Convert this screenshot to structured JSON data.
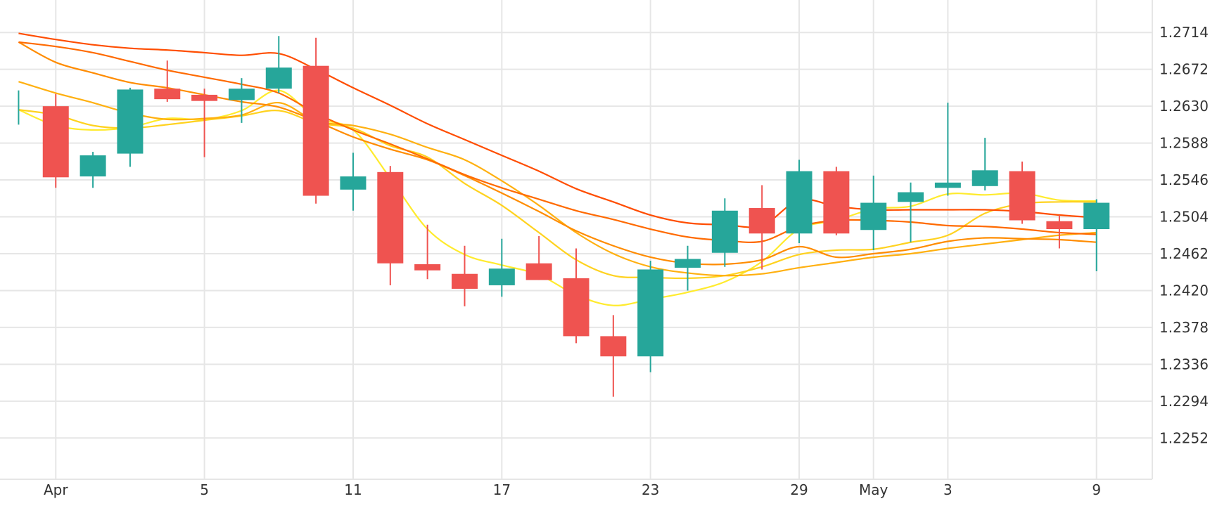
{
  "chart_data": {
    "type": "candlestick",
    "y_ticks": [
      "1.2714",
      "1.2672",
      "1.2630",
      "1.2588",
      "1.2546",
      "1.2504",
      "1.2462",
      "1.2420",
      "1.2378",
      "1.2336",
      "1.2294",
      "1.2252"
    ],
    "x_ticks": [
      {
        "label": "Apr",
        "day_index": 1
      },
      {
        "label": "5",
        "day_index": 5
      },
      {
        "label": "11",
        "day_index": 9
      },
      {
        "label": "17",
        "day_index": 13
      },
      {
        "label": "23",
        "day_index": 17
      },
      {
        "label": "29",
        "day_index": 21
      },
      {
        "label": "May",
        "day_index": 23
      },
      {
        "label": "3",
        "day_index": 25
      },
      {
        "label": "9",
        "day_index": 29
      }
    ],
    "ylim": [
      1.2205,
      1.2751
    ],
    "xlim": [
      -0.5,
      30.5
    ],
    "grid": true,
    "candles": [
      {
        "i": 0,
        "open": 1.2616,
        "high": 1.2648,
        "low": 1.2609,
        "close": 1.2626
      },
      {
        "i": 1,
        "open": 1.263,
        "high": 1.2644,
        "low": 1.2537,
        "close": 1.2549
      },
      {
        "i": 2,
        "open": 1.255,
        "high": 1.2578,
        "low": 1.2537,
        "close": 1.2574
      },
      {
        "i": 3,
        "open": 1.2576,
        "high": 1.2651,
        "low": 1.2561,
        "close": 1.2649
      },
      {
        "i": 4,
        "open": 1.265,
        "high": 1.2682,
        "low": 1.2635,
        "close": 1.2638
      },
      {
        "i": 5,
        "open": 1.2643,
        "high": 1.265,
        "low": 1.2572,
        "close": 1.2636
      },
      {
        "i": 6,
        "open": 1.2637,
        "high": 1.2662,
        "low": 1.2611,
        "close": 1.265
      },
      {
        "i": 7,
        "open": 1.265,
        "high": 1.271,
        "low": 1.2645,
        "close": 1.2674
      },
      {
        "i": 8,
        "open": 1.2676,
        "high": 1.2708,
        "low": 1.2519,
        "close": 1.2528
      },
      {
        "i": 9,
        "open": 1.2535,
        "high": 1.2577,
        "low": 1.2511,
        "close": 1.255
      },
      {
        "i": 10,
        "open": 1.2555,
        "high": 1.2562,
        "low": 1.2426,
        "close": 1.2451
      },
      {
        "i": 11,
        "open": 1.245,
        "high": 1.2495,
        "low": 1.2433,
        "close": 1.2443
      },
      {
        "i": 12,
        "open": 1.2439,
        "high": 1.2471,
        "low": 1.2402,
        "close": 1.2422
      },
      {
        "i": 13,
        "open": 1.2426,
        "high": 1.2479,
        "low": 1.2413,
        "close": 1.2445
      },
      {
        "i": 14,
        "open": 1.2451,
        "high": 1.2482,
        "low": 1.2432,
        "close": 1.2432
      },
      {
        "i": 15,
        "open": 1.2434,
        "high": 1.2468,
        "low": 1.236,
        "close": 1.2368
      },
      {
        "i": 16,
        "open": 1.2368,
        "high": 1.2392,
        "low": 1.2299,
        "close": 1.2345
      },
      {
        "i": 17,
        "open": 1.2345,
        "high": 1.2454,
        "low": 1.2327,
        "close": 1.2444
      },
      {
        "i": 18,
        "open": 1.2446,
        "high": 1.2471,
        "low": 1.242,
        "close": 1.2456
      },
      {
        "i": 19,
        "open": 1.2463,
        "high": 1.2525,
        "low": 1.2447,
        "close": 1.2511
      },
      {
        "i": 20,
        "open": 1.2514,
        "high": 1.254,
        "low": 1.2444,
        "close": 1.2485
      },
      {
        "i": 21,
        "open": 1.2485,
        "high": 1.2569,
        "low": 1.2474,
        "close": 1.2556
      },
      {
        "i": 22,
        "open": 1.2556,
        "high": 1.2561,
        "low": 1.2483,
        "close": 1.2485
      },
      {
        "i": 23,
        "open": 1.2489,
        "high": 1.2551,
        "low": 1.2466,
        "close": 1.252
      },
      {
        "i": 24,
        "open": 1.2521,
        "high": 1.2543,
        "low": 1.2475,
        "close": 1.2532
      },
      {
        "i": 25,
        "open": 1.2537,
        "high": 1.2634,
        "low": 1.2528,
        "close": 1.2543
      },
      {
        "i": 26,
        "open": 1.2539,
        "high": 1.2594,
        "low": 1.2534,
        "close": 1.2557
      },
      {
        "i": 27,
        "open": 1.2556,
        "high": 1.2567,
        "low": 1.2496,
        "close": 1.25
      },
      {
        "i": 28,
        "open": 1.2499,
        "high": 1.2506,
        "low": 1.2468,
        "close": 1.249
      },
      {
        "i": 29,
        "open": 1.249,
        "high": 1.2524,
        "low": 1.2442,
        "close": 1.252
      }
    ],
    "series": [
      {
        "color": "#ffeb2e",
        "values": [
          1.2626,
          1.2608,
          1.2603,
          1.2606,
          1.2616,
          1.2615,
          1.2625,
          1.2648,
          1.2617,
          1.2603,
          1.2548,
          1.249,
          1.2461,
          1.2449,
          1.2438,
          1.2415,
          1.2403,
          1.241,
          1.2418,
          1.243,
          1.2453,
          1.249,
          1.25,
          1.2513,
          1.2516,
          1.253,
          1.2529,
          1.2531,
          1.2523,
          1.2522
        ]
      },
      {
        "color": "#ffd21f",
        "values": [
          1.2626,
          1.262,
          1.2608,
          1.2605,
          1.2609,
          1.2614,
          1.2619,
          1.2625,
          1.2611,
          1.2605,
          1.2585,
          1.2572,
          1.2542,
          1.2517,
          1.2486,
          1.2455,
          1.2437,
          1.2435,
          1.2434,
          1.2437,
          1.2447,
          1.2461,
          1.2466,
          1.2467,
          1.2475,
          1.2483,
          1.2508,
          1.2519,
          1.2521,
          1.2521
        ]
      },
      {
        "color": "#ffb010",
        "values": [
          1.2658,
          1.2645,
          1.2634,
          1.2622,
          1.2615,
          1.2616,
          1.262,
          1.2634,
          1.2613,
          1.2608,
          1.2598,
          1.2583,
          1.2569,
          1.2545,
          1.2517,
          1.2486,
          1.2462,
          1.2447,
          1.244,
          1.2437,
          1.2439,
          1.2446,
          1.2452,
          1.2458,
          1.2462,
          1.2468,
          1.2473,
          1.2478,
          1.2483,
          1.2486
        ]
      },
      {
        "color": "#ff8c00",
        "values": [
          1.2703,
          1.268,
          1.2668,
          1.2657,
          1.2651,
          1.2643,
          1.2635,
          1.2629,
          1.2613,
          1.2595,
          1.2581,
          1.2569,
          1.2551,
          1.2531,
          1.251,
          1.2488,
          1.2471,
          1.2458,
          1.2451,
          1.245,
          1.2455,
          1.247,
          1.2458,
          1.2462,
          1.2467,
          1.2476,
          1.248,
          1.2479,
          1.2478,
          1.2475
        ]
      },
      {
        "color": "#ff6a00",
        "values": [
          1.2703,
          1.2698,
          1.2691,
          1.2681,
          1.2671,
          1.2663,
          1.2655,
          1.2645,
          1.2622,
          1.2603,
          1.2587,
          1.257,
          1.2552,
          1.2537,
          1.2524,
          1.2511,
          1.2501,
          1.249,
          1.2481,
          1.2477,
          1.2476,
          1.2493,
          1.25,
          1.25,
          1.2498,
          1.2494,
          1.2493,
          1.249,
          1.2486,
          1.2484
        ]
      },
      {
        "color": "#ff4d00",
        "values": [
          1.2713,
          1.2706,
          1.27,
          1.2696,
          1.2694,
          1.2691,
          1.2688,
          1.269,
          1.2672,
          1.2651,
          1.2631,
          1.261,
          1.2592,
          1.2574,
          1.2556,
          1.2536,
          1.2521,
          1.2506,
          1.2497,
          1.2495,
          1.2494,
          1.2523,
          1.2516,
          1.2512,
          1.2512,
          1.2512,
          1.2512,
          1.251,
          1.2506,
          1.2503
        ]
      }
    ]
  }
}
